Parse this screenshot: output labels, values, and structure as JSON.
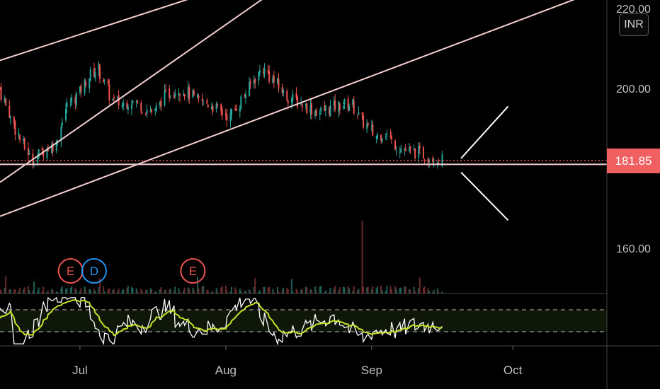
{
  "currency_label": "INR",
  "last_price_label": "181.85",
  "colors": {
    "background": "#000000",
    "up_candle": "#26a69a",
    "down_candle": "#ef5350",
    "trendline": "#f5d0d0",
    "price_line": "#ef5350",
    "rsi_line": "#ffffff",
    "rsi_signal": "#c6e22a",
    "event_earnings": "#ef5350",
    "event_dividend": "#2196f3",
    "last_price_bg": "#f06060"
  },
  "events": [
    {
      "type": "earnings",
      "label": "E",
      "date": "Jun 29"
    },
    {
      "type": "dividend",
      "label": "D",
      "date": "Jul 3"
    },
    {
      "type": "earnings",
      "label": "E",
      "date": "Jul 25"
    }
  ],
  "chart_data": {
    "type": "candlestick",
    "title": "",
    "y_ticks": [
      "220.00",
      "200.00",
      "160.00"
    ],
    "y_tick_values": [
      220,
      200,
      160
    ],
    "ylim": [
      145,
      222
    ],
    "x_ticks": [
      "Jul",
      "Aug",
      "Sep",
      "Oct"
    ],
    "x_tick_dates": [
      "2019-07-01",
      "2019-08-01",
      "2019-09-01",
      "2019-10-01"
    ],
    "xlim": [
      "2019-06-14",
      "2019-10-21"
    ],
    "grid": false,
    "last_price": 181.85,
    "price_series": {
      "dates": [
        "2019-06-14",
        "2019-06-17",
        "2019-06-19",
        "2019-06-21",
        "2019-06-24",
        "2019-06-26",
        "2019-06-28",
        "2019-07-01",
        "2019-07-03",
        "2019-07-05",
        "2019-07-08",
        "2019-07-10",
        "2019-07-12",
        "2019-07-15",
        "2019-07-17",
        "2019-07-19",
        "2019-07-22",
        "2019-07-24",
        "2019-07-26",
        "2019-07-29",
        "2019-07-31",
        "2019-08-02",
        "2019-08-05",
        "2019-08-07",
        "2019-08-09",
        "2019-08-12",
        "2019-08-14",
        "2019-08-16",
        "2019-08-19",
        "2019-08-21",
        "2019-08-23",
        "2019-08-26",
        "2019-08-28",
        "2019-08-30",
        "2019-09-02",
        "2019-09-04",
        "2019-09-06",
        "2019-09-09",
        "2019-09-11",
        "2019-09-13",
        "2019-09-16"
      ],
      "close": [
        200,
        191,
        186,
        182,
        185,
        186,
        195,
        199,
        203,
        205,
        197,
        196,
        197,
        195,
        194,
        198,
        200,
        199,
        197,
        196,
        194,
        193,
        198,
        202,
        205,
        201,
        198,
        197,
        195,
        194,
        195,
        196,
        196,
        192,
        188,
        189,
        186,
        184,
        184,
        183,
        182
      ]
    },
    "trendlines": [
      {
        "label": "",
        "from": [
          "2019-06-14",
          207
        ],
        "to": [
          "2019-07-31",
          225
        ]
      },
      {
        "label": "",
        "from": [
          "2019-06-14",
          176.5
        ],
        "to": [
          "2019-08-12",
          225
        ]
      },
      {
        "label": "",
        "from": [
          "2019-06-14",
          168
        ],
        "to": [
          "2019-10-18",
          224
        ]
      },
      {
        "label": "",
        "from": [
          "2019-06-14",
          181
        ],
        "to": [
          "2019-10-21",
          181
        ]
      }
    ],
    "projection_marks": [
      {
        "from": [
          "2019-09-20",
          182.5
        ],
        "to": [
          "2019-09-30",
          195.5
        ]
      },
      {
        "from": [
          "2019-09-20",
          179
        ],
        "to": [
          "2019-09-30",
          167
        ]
      }
    ],
    "rsi": {
      "upper_band_label": "",
      "lower_band_label": "",
      "upper_band": 70,
      "lower_band": 30
    }
  }
}
